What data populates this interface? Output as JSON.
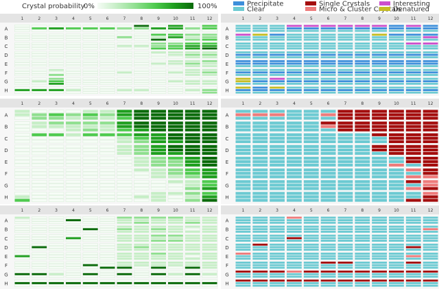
{
  "left_legend": {
    "title": "Crystal probability",
    "min": "0%",
    "max": "100%",
    "colors": [
      "#f6fcf6",
      "#c6eec6",
      "#8fdf8f",
      "#4fcb4f",
      "#1f9f1f",
      "#0a6a0a"
    ]
  },
  "right_legend": [
    {
      "label": "Precipitate",
      "code": "P",
      "color": "#3d8fdb"
    },
    {
      "label": "Clear",
      "code": "C",
      "color": "#6ccad2"
    },
    {
      "label": "Single Crystals",
      "code": "S",
      "color": "#a40d0d"
    },
    {
      "label": "Micro & Cluster Crystals",
      "code": "M",
      "color": "#ee7b7b"
    },
    {
      "label": "Interesting",
      "code": "I",
      "color": "#cc4fcc"
    },
    {
      "label": "Denatured",
      "code": "D",
      "color": "#c6bd22"
    }
  ],
  "columns": [
    "1",
    "2",
    "3",
    "4",
    "5",
    "6",
    "7",
    "8",
    "9",
    "10",
    "11",
    "12"
  ],
  "rows": [
    "A",
    "B",
    "C",
    "D",
    "E",
    "F",
    "G",
    "H"
  ],
  "heatmap_plates": [
    {
      "rows": [
        [
          "000000050403",
          "034333224423",
          "000000000000"
        ],
        [
          "000000003322",
          "000000201412",
          "000000005023"
        ],
        [
          "000000002233",
          "000000112344",
          "000000003345"
        ],
        [
          "000000001111",
          "000000000122",
          "000000000011"
        ],
        [
          "000000000112",
          "000000001121",
          "000000000011"
        ],
        [
          "001000000011",
          "000000100112",
          "002000000011"
        ],
        [
          "002000000000",
          "013000000111",
          "004000000011"
        ],
        [
          "000000000000",
          "444100110012",
          "000000000002"
        ]
      ]
    },
    {
      "rows": [
        [
          "100011455555",
          "123232455555",
          "022121355555"
        ],
        [
          "012222455555",
          "011111455555",
          "000121345555"
        ],
        [
          "033133344555",
          "000000134555",
          "000000124455"
        ],
        [
          "000000124555",
          "000000124555",
          "000000124455"
        ],
        [
          "000000012345",
          "000000012245",
          "000000012245"
        ],
        [
          "000000011234",
          "000000001234",
          "000000001124"
        ],
        [
          "000000000113",
          "000000000013",
          "000000000024"
        ],
        [
          "000000001123",
          "100000011014",
          "300000001025"
        ]
      ]
    },
    {
      "rows": [
        [
          "100000222211",
          "000500111111",
          "000000121121"
        ],
        [
          "000000111111",
          "000050212101",
          "000000111111"
        ],
        [
          "000000112211",
          "000400111111",
          "000000112211"
        ],
        [
          "000000111111",
          "050000121111",
          "000000111111"
        ],
        [
          "000000112111",
          "400000111101",
          "000000111111"
        ],
        [
          "000000111111",
          "000050111111",
          "000005505051"
        ],
        [
          "000000000000",
          "551050505151",
          "000000000000"
        ],
        [
          "000000000000",
          "555555555555",
          "000000000000"
        ]
      ]
    }
  ],
  "category_plates": [
    {
      "rows": [
        [
          "CCCIIIIIIPIP",
          "CCCPPPPPPPPP",
          "CCCCCCCCCCCC"
        ],
        [
          "IDPCCCCCDPPP",
          "CCCCCCCCCCCI",
          "CCCCCCCCCCCC"
        ],
        [
          "CCCCCCCCCCII",
          "CCCCCCCCCCCC",
          "CCCCCCCCCCCC"
        ],
        [
          "CCCCCCCCCCCC",
          "PPPPPPPPPPPP",
          "CCCCCCCCCCCC"
        ],
        [
          "PPPPPPPPPPPP",
          "PPPPPPPPPPPP",
          "CCCCCCCCCCCC"
        ],
        [
          "CCCCCCCCCCCC",
          "PPPPPPPPPPPP",
          "CCCCCCCCCCCC"
        ],
        [
          "DCICCCCCCCCC",
          "DPPPPPPPPPPP",
          "CCCCCCCCCCCC"
        ],
        [
          "DPDCCCCCCCCC",
          "PPPPPPPPPPPP",
          "CCCCCCCCCCCC"
        ]
      ]
    },
    {
      "rows": [
        [
          "CCCCCCSSSSSS",
          "MMMCCMSSSSSS",
          "CCCCCCSSSSSS"
        ],
        [
          "CCCCCSSSSSSS",
          "CCCCCMSSSSSS",
          "CCCCCCSSSSSS"
        ],
        [
          "CCCCCCCCSSSS",
          "CCCCCCCCCSSS",
          "CCCCCCCCCSSS"
        ],
        [
          "CCCCCCCCSSSS",
          "CCCCCCCCSSSS",
          "CCCCCCCCCSSS"
        ],
        [
          "CCCCCCCCCCSS",
          "CCCCCCCCCCSS",
          "CCCCCCCCCMCS"
        ],
        [
          "CCCCCCCCCCMS",
          "CCCCCCCCCCCS",
          "CCCCCCCCCCMM"
        ],
        [
          "CCCCCCCCCCSM",
          "CCCCCCCCCCCM",
          "CCCCCCCCCCMS"
        ],
        [
          "CCCCCCCCCCCM",
          "CCCCCCCCCCCS",
          "CCCCCCCCCCSS"
        ]
      ]
    },
    {
      "rows": [
        [
          "CCCMCCCCCCCC",
          "CCCCCCCCCCCC",
          "CCCCCCCCCCCC"
        ],
        [
          "CCCCCCCCCCCC",
          "CCCCCCCCCCCM",
          "CCCCCCCCCCCC"
        ],
        [
          "CCCCCCCCCCCC",
          "CCCSCCCCCCCC",
          "CCCCCCCCCCCC"
        ],
        [
          "CSCCCCCCCCCC",
          "CCCCCCCCCCSC",
          "CCCCCCCCCCCC"
        ],
        [
          "MCCCCCCCCCCC",
          "CCCCCCCCCCMC",
          "CCCCCCCCCCCC"
        ],
        [
          "CCCCCSSCCCSC",
          "CCCCCCCCCCCC",
          "CCCCCCCCCCCC"
        ],
        [
          "SSSMSSSSSSSS",
          "CCCCCCCCCCCC",
          "CCCCCCCCCCCC"
        ],
        [
          "SSSSSSSSSSSS",
          "CCCCCCCCCCCC",
          "CCCCCCCCCCCC"
        ]
      ]
    }
  ]
}
